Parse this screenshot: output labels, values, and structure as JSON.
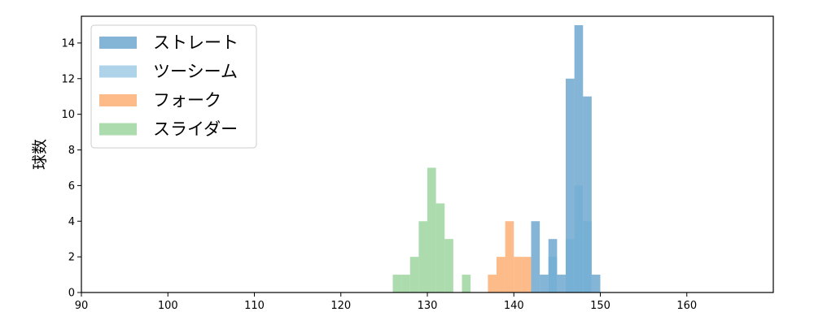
{
  "chart_data": {
    "type": "histogram",
    "title": "",
    "xlabel": "",
    "ylabel": "球数",
    "xlim": [
      90,
      170
    ],
    "ylim": [
      0,
      15.5
    ],
    "xticks": [
      90,
      100,
      110,
      120,
      130,
      140,
      150,
      160
    ],
    "yticks": [
      0,
      2,
      4,
      6,
      8,
      10,
      12,
      14
    ],
    "grid": false,
    "legend_position": "upper-left",
    "bin_width": 1,
    "series": [
      {
        "name": "ストレート",
        "color": "#1f77b4",
        "opacity": 0.55,
        "bins": [
          {
            "x": 142,
            "y": 4
          },
          {
            "x": 143,
            "y": 1
          },
          {
            "x": 144,
            "y": 3
          },
          {
            "x": 145,
            "y": 1
          },
          {
            "x": 146,
            "y": 12
          },
          {
            "x": 147,
            "y": 15
          },
          {
            "x": 148,
            "y": 11
          },
          {
            "x": 149,
            "y": 1
          }
        ]
      },
      {
        "name": "ツーシーム",
        "color": "#6baed6",
        "opacity": 0.55,
        "bins": [
          {
            "x": 144,
            "y": 2
          },
          {
            "x": 146,
            "y": 3
          },
          {
            "x": 147,
            "y": 6
          },
          {
            "x": 148,
            "y": 4
          }
        ]
      },
      {
        "name": "フォーク",
        "color": "#fd8d3c",
        "opacity": 0.6,
        "bins": [
          {
            "x": 137,
            "y": 1
          },
          {
            "x": 138,
            "y": 2
          },
          {
            "x": 139,
            "y": 4
          },
          {
            "x": 140,
            "y": 2
          },
          {
            "x": 141,
            "y": 2
          }
        ]
      },
      {
        "name": "スライダー",
        "color": "#74c476",
        "opacity": 0.6,
        "bins": [
          {
            "x": 126,
            "y": 1
          },
          {
            "x": 127,
            "y": 1
          },
          {
            "x": 128,
            "y": 2
          },
          {
            "x": 129,
            "y": 4
          },
          {
            "x": 130,
            "y": 7
          },
          {
            "x": 131,
            "y": 5
          },
          {
            "x": 132,
            "y": 3
          },
          {
            "x": 134,
            "y": 1
          }
        ]
      }
    ]
  }
}
